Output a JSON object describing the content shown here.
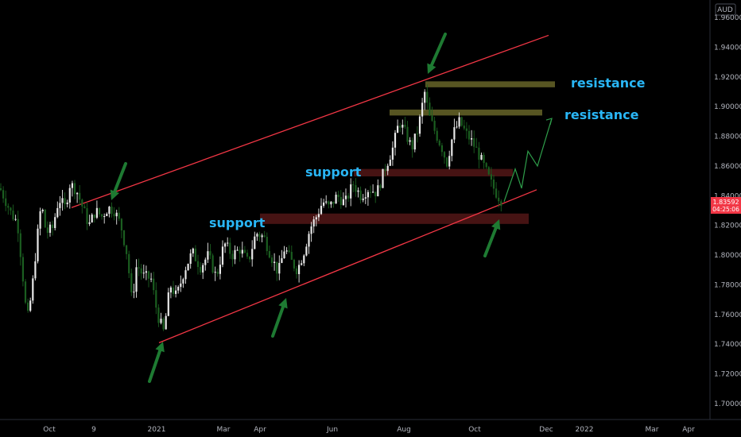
{
  "currency": "AUD",
  "price_badge": {
    "price": "1.83592",
    "countdown": "04:25:06",
    "color": "#f23645"
  },
  "annotations": {
    "resistance_1": "resistance",
    "resistance_2": "resistance",
    "support_1": "support",
    "support_2": "support"
  },
  "colors": {
    "background": "#000000",
    "channel": "#f23645",
    "resistance_zone": "#5c5a24",
    "support_zone": "#4a1414",
    "arrow": "#1e7a32",
    "candle_up": "#e8e8e8",
    "candle_down": "#1b5e20",
    "projection": "#2e9d4a",
    "label": "#29b6f6"
  },
  "chart_data": {
    "type": "candlestick",
    "ylim": [
      1.69,
      1.965
    ],
    "y_ticks": [
      "1.96000",
      "1.94000",
      "1.92000",
      "1.90000",
      "1.88000",
      "1.86000",
      "1.84000",
      "1.82000",
      "1.80000",
      "1.78000",
      "1.76000",
      "1.74000",
      "1.72000",
      "1.70000"
    ],
    "x_ticks": [
      "Oct",
      "9",
      "2021",
      "Mar",
      "Apr",
      "Jun",
      "Aug",
      "Oct",
      "Dec",
      "2022",
      "Mar",
      "Apr"
    ],
    "price_path": [
      [
        0,
        1.845
      ],
      [
        6,
        1.838
      ],
      [
        14,
        1.828
      ],
      [
        22,
        1.822
      ],
      [
        28,
        1.79
      ],
      [
        34,
        1.755
      ],
      [
        40,
        1.775
      ],
      [
        46,
        1.808
      ],
      [
        52,
        1.835
      ],
      [
        58,
        1.815
      ],
      [
        66,
        1.818
      ],
      [
        74,
        1.838
      ],
      [
        82,
        1.832
      ],
      [
        88,
        1.848
      ],
      [
        96,
        1.844
      ],
      [
        104,
        1.832
      ],
      [
        112,
        1.82
      ],
      [
        120,
        1.83
      ],
      [
        128,
        1.826
      ],
      [
        136,
        1.832
      ],
      [
        144,
        1.83
      ],
      [
        152,
        1.82
      ],
      [
        160,
        1.8
      ],
      [
        166,
        1.768
      ],
      [
        172,
        1.794
      ],
      [
        180,
        1.786
      ],
      [
        190,
        1.784
      ],
      [
        198,
        1.76
      ],
      [
        206,
        1.748
      ],
      [
        214,
        1.78
      ],
      [
        222,
        1.772
      ],
      [
        232,
        1.79
      ],
      [
        242,
        1.802
      ],
      [
        252,
        1.792
      ],
      [
        262,
        1.8
      ],
      [
        272,
        1.785
      ],
      [
        282,
        1.808
      ],
      [
        292,
        1.8
      ],
      [
        302,
        1.804
      ],
      [
        312,
        1.795
      ],
      [
        322,
        1.815
      ],
      [
        332,
        1.812
      ],
      [
        342,
        1.798
      ],
      [
        350,
        1.788
      ],
      [
        358,
        1.805
      ],
      [
        366,
        1.796
      ],
      [
        374,
        1.79
      ],
      [
        382,
        1.802
      ],
      [
        390,
        1.818
      ],
      [
        398,
        1.826
      ],
      [
        406,
        1.836
      ],
      [
        414,
        1.832
      ],
      [
        424,
        1.84
      ],
      [
        434,
        1.835
      ],
      [
        444,
        1.848
      ],
      [
        454,
        1.84
      ],
      [
        464,
        1.845
      ],
      [
        474,
        1.842
      ],
      [
        484,
        1.858
      ],
      [
        494,
        1.872
      ],
      [
        502,
        1.89
      ],
      [
        510,
        1.882
      ],
      [
        518,
        1.872
      ],
      [
        526,
        1.885
      ],
      [
        534,
        1.91
      ],
      [
        540,
        1.893
      ],
      [
        548,
        1.882
      ],
      [
        556,
        1.872
      ],
      [
        562,
        1.862
      ],
      [
        570,
        1.882
      ],
      [
        578,
        1.89
      ],
      [
        586,
        1.882
      ],
      [
        594,
        1.876
      ],
      [
        602,
        1.868
      ],
      [
        610,
        1.858
      ],
      [
        618,
        1.848
      ],
      [
        626,
        1.84
      ],
      [
        632,
        1.836
      ]
    ],
    "projection_path": [
      [
        634,
        1.836
      ],
      [
        648,
        1.858
      ],
      [
        656,
        1.845
      ],
      [
        664,
        1.87
      ],
      [
        676,
        1.86
      ],
      [
        694,
        1.892
      ]
    ],
    "channel_upper": [
      [
        90,
        1.832
      ],
      [
        690,
        1.948
      ]
    ],
    "channel_lower": [
      [
        200,
        1.741
      ],
      [
        675,
        1.844
      ]
    ],
    "zones": [
      {
        "kind": "resistance",
        "y1": 1.913,
        "y2": 1.917,
        "x0": 535,
        "x1": 698
      },
      {
        "kind": "resistance",
        "y1": 1.894,
        "y2": 1.898,
        "x0": 490,
        "x1": 682
      },
      {
        "kind": "support",
        "y1": 1.853,
        "y2": 1.858,
        "x0": 445,
        "x1": 645
      },
      {
        "kind": "support",
        "y1": 1.821,
        "y2": 1.828,
        "x0": 327,
        "x1": 665
      }
    ]
  }
}
